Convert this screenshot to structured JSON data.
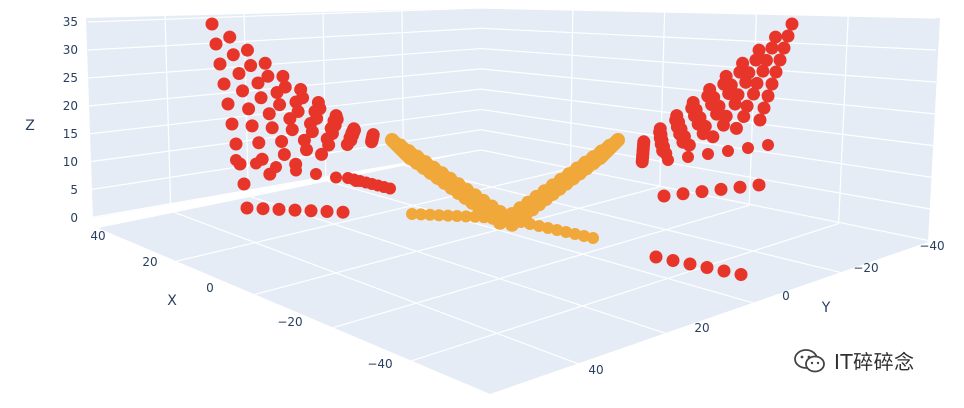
{
  "chart_data": {
    "type": "scatter3d",
    "axes": {
      "x": {
        "label": "X",
        "range": [
          -50,
          50
        ],
        "ticks": [
          "40",
          "20",
          "0",
          "−20",
          "−40"
        ]
      },
      "y": {
        "label": "Y",
        "range": [
          -50,
          50
        ],
        "ticks": [
          "−40",
          "−20",
          "0",
          "20",
          "40"
        ]
      },
      "z": {
        "label": "Z",
        "range": [
          0,
          35
        ],
        "ticks": [
          "0",
          "5",
          "10",
          "15",
          "20",
          "25",
          "30",
          "35"
        ]
      }
    },
    "grid": true,
    "series": [
      {
        "color": "#e8352a",
        "description_values": "red markers forming two wing-shaped lattices"
      },
      {
        "color": "#f1a83a",
        "description_values": "orange markers forming a V-shaped fan near the center"
      }
    ],
    "background": "#e5ecf6"
  },
  "watermark": {
    "text": "IT碎碎念",
    "icon": "wechat-icon"
  }
}
